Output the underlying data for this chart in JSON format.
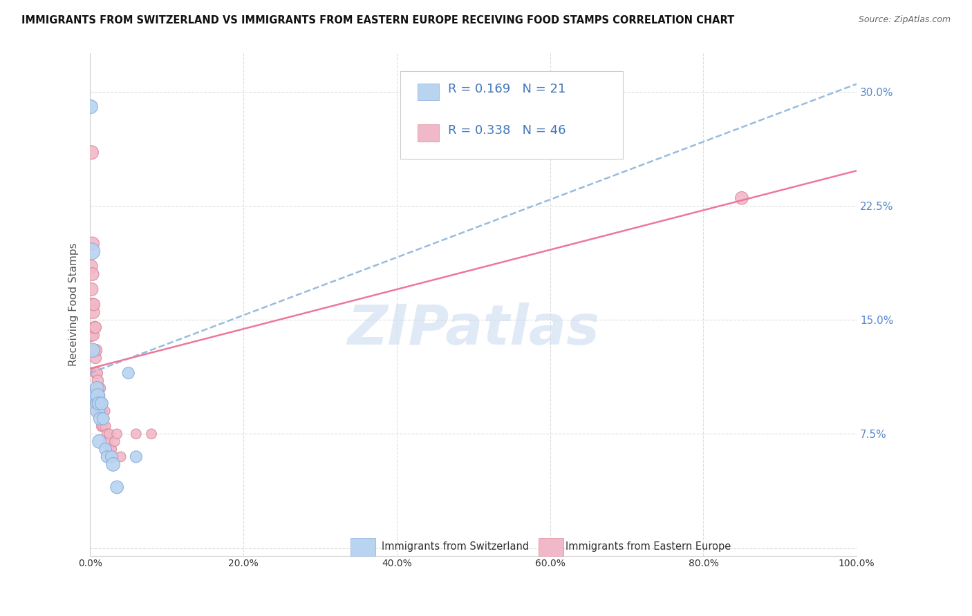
{
  "title": "IMMIGRANTS FROM SWITZERLAND VS IMMIGRANTS FROM EASTERN EUROPE RECEIVING FOOD STAMPS CORRELATION CHART",
  "source": "Source: ZipAtlas.com",
  "ylabel": "Receiving Food Stamps",
  "legend_label1": "Immigrants from Switzerland",
  "legend_label2": "Immigrants from Eastern Europe",
  "R1": 0.169,
  "N1": 21,
  "R2": 0.338,
  "N2": 46,
  "color1": "#b8d4f0",
  "color2": "#f0b8c8",
  "edge_color1": "#88aadd",
  "edge_color2": "#dd8899",
  "line_color1": "#99bbdd",
  "line_color2": "#ee7799",
  "watermark": "ZIPatlas",
  "xlim": [
    0.0,
    1.0
  ],
  "ylim": [
    -0.005,
    0.325
  ],
  "xtick_vals": [
    0.0,
    0.2,
    0.4,
    0.6,
    0.8,
    1.0
  ],
  "xtick_labels": [
    "0.0%",
    "20.0%",
    "40.0%",
    "60.0%",
    "80.0%",
    "100.0%"
  ],
  "ytick_vals": [
    0.075,
    0.15,
    0.225,
    0.3
  ],
  "ytick_labels": [
    "7.5%",
    "15.0%",
    "22.5%",
    "30.0%"
  ],
  "swiss_x": [
    0.001,
    0.002,
    0.003,
    0.005,
    0.008,
    0.009,
    0.009,
    0.01,
    0.01,
    0.011,
    0.012,
    0.013,
    0.015,
    0.017,
    0.02,
    0.022,
    0.028,
    0.03,
    0.035,
    0.05,
    0.06
  ],
  "swiss_y": [
    0.29,
    0.195,
    0.13,
    0.1,
    0.1,
    0.105,
    0.095,
    0.09,
    0.1,
    0.095,
    0.07,
    0.085,
    0.095,
    0.085,
    0.065,
    0.06,
    0.06,
    0.055,
    0.04,
    0.115,
    0.06
  ],
  "swiss_size": [
    200,
    300,
    220,
    280,
    300,
    200,
    200,
    220,
    220,
    180,
    200,
    180,
    180,
    160,
    160,
    150,
    160,
    200,
    180,
    150,
    150
  ],
  "eastern_x": [
    0.001,
    0.001,
    0.002,
    0.002,
    0.003,
    0.003,
    0.003,
    0.004,
    0.004,
    0.005,
    0.005,
    0.006,
    0.006,
    0.007,
    0.007,
    0.008,
    0.008,
    0.009,
    0.009,
    0.01,
    0.01,
    0.011,
    0.011,
    0.012,
    0.013,
    0.013,
    0.014,
    0.015,
    0.015,
    0.016,
    0.017,
    0.018,
    0.019,
    0.02,
    0.022,
    0.023,
    0.025,
    0.026,
    0.028,
    0.03,
    0.032,
    0.035,
    0.04,
    0.06,
    0.08,
    0.85
  ],
  "eastern_y": [
    0.185,
    0.14,
    0.26,
    0.17,
    0.2,
    0.16,
    0.18,
    0.155,
    0.14,
    0.16,
    0.13,
    0.145,
    0.13,
    0.145,
    0.125,
    0.13,
    0.115,
    0.115,
    0.1,
    0.11,
    0.095,
    0.105,
    0.09,
    0.1,
    0.095,
    0.105,
    0.09,
    0.095,
    0.08,
    0.09,
    0.08,
    0.085,
    0.09,
    0.08,
    0.075,
    0.07,
    0.075,
    0.065,
    0.065,
    0.06,
    0.07,
    0.075,
    0.06,
    0.075,
    0.075,
    0.23
  ],
  "eastern_size": [
    200,
    180,
    200,
    180,
    200,
    180,
    180,
    180,
    160,
    160,
    160,
    160,
    150,
    150,
    150,
    150,
    150,
    140,
    140,
    140,
    140,
    140,
    130,
    130,
    130,
    130,
    130,
    130,
    120,
    120,
    120,
    120,
    120,
    120,
    110,
    110,
    110,
    110,
    110,
    110,
    110,
    110,
    110,
    110,
    110,
    180
  ],
  "swiss_line_x0": 0.0,
  "swiss_line_y0": 0.115,
  "swiss_line_x1": 1.0,
  "swiss_line_y1": 0.305,
  "eastern_line_x0": 0.0,
  "eastern_line_y0": 0.118,
  "eastern_line_x1": 1.0,
  "eastern_line_y1": 0.248
}
